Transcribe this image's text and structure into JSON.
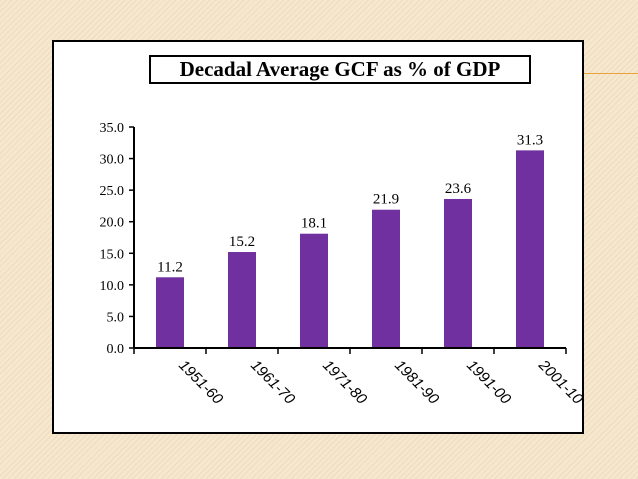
{
  "slide": {
    "background_color": "#f6e8cf",
    "accent_line_color": "#e8a33a"
  },
  "chart_data": {
    "type": "bar",
    "title": "Decadal Average GCF as % of GDP",
    "xlabel": "",
    "ylabel": "",
    "categories": [
      "1951-60",
      "1961-70",
      "1971-80",
      "1981-90",
      "1991-00",
      "2001-10"
    ],
    "values": [
      11.2,
      15.2,
      18.1,
      21.9,
      23.6,
      31.3
    ],
    "data_labels": [
      "11.2",
      "15.2",
      "18.1",
      "21.9",
      "23.6",
      "31.3"
    ],
    "ylim": [
      0,
      35
    ],
    "yticks": [
      "0.0",
      "5.0",
      "10.0",
      "15.0",
      "20.0",
      "25.0",
      "30.0",
      "35.0"
    ],
    "ytick_values": [
      0,
      5,
      10,
      15,
      20,
      25,
      30,
      35
    ],
    "bar_color": "#7030a0",
    "grid": false,
    "legend": "none"
  }
}
